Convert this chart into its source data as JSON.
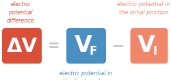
{
  "bg_color": "#ffffff",
  "box1_color": "#d94f38",
  "box2_color": "#4a8fc1",
  "box3_color": "#f0876b",
  "box1_text": "ΔV",
  "box2_text": "V",
  "box2_sub": "F",
  "box3_text": "V",
  "box3_sub": "I",
  "label1_text": "electric\npotential\ndifference",
  "label1_color": "#d94f38",
  "label2_text": "electric potential in\nthe final position",
  "label2_color": "#4a8fc1",
  "label3_text": "electric potential in\nthe initial position",
  "label3_color": "#f0876b",
  "eq_sign": "=",
  "minus_sign": "−",
  "operator_color": "#c8c8c8",
  "text_color": "#ffffff",
  "fig_width": 2.51,
  "fig_height": 1.17,
  "dpi": 100
}
